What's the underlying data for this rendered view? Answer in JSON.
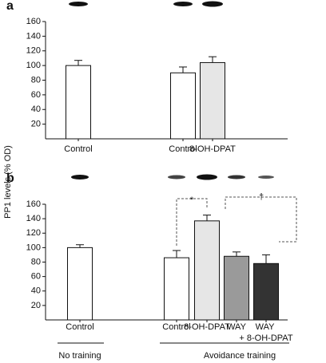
{
  "y_label": "PP1 levels (% OD)",
  "chart_data": [
    {
      "type": "bar",
      "panel": "a",
      "categories": [
        "Control",
        "Control",
        "8-OH-DPAT"
      ],
      "values": [
        100,
        90,
        104
      ],
      "errors": [
        7,
        8,
        8
      ],
      "colors": [
        "#ffffff",
        "#ffffff",
        "#e6e6e6"
      ],
      "ylim": [
        0,
        160
      ],
      "yticks": [
        20,
        40,
        60,
        80,
        100,
        120,
        140,
        160
      ]
    },
    {
      "type": "bar",
      "panel": "b",
      "categories": [
        "Control",
        "Control",
        "8-OH-DPAT",
        "WAY",
        "WAY + 8-OH-DPAT"
      ],
      "values": [
        100,
        86,
        137,
        88,
        78
      ],
      "errors": [
        4,
        10,
        8,
        6,
        12
      ],
      "colors": [
        "#ffffff",
        "#ffffff",
        "#e6e6e6",
        "#9a9a9a",
        "#333333"
      ],
      "ylim": [
        0,
        160
      ],
      "yticks": [
        20,
        40,
        60,
        80,
        100,
        120,
        140,
        160
      ],
      "groups": [
        {
          "label": "No training"
        },
        {
          "label": "Avoidance training"
        }
      ],
      "annotations": [
        {
          "text": "*"
        },
        {
          "text": "†"
        }
      ]
    }
  ]
}
